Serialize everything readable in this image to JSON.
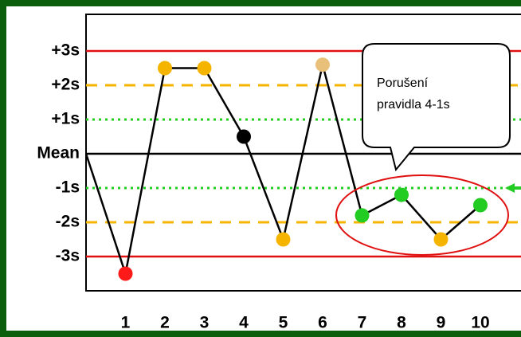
{
  "chart_data": {
    "type": "line",
    "x": [
      0,
      1,
      2,
      3,
      4,
      5,
      6,
      7,
      8,
      9,
      10
    ],
    "values": [
      0,
      -3.5,
      2.5,
      2.5,
      0.5,
      -2.5,
      2.6,
      -1.8,
      -1.2,
      -2.5,
      -1.5
    ],
    "point_colors": [
      null,
      "#ff1a1a",
      "#f5b400",
      "#f5b400",
      "#000000",
      "#f5b400",
      "#e8c07a",
      "#22cc22",
      "#22cc22",
      "#f5b400",
      "#22cc22"
    ],
    "xlim": [
      0,
      11
    ],
    "xticks": [
      1,
      2,
      3,
      4,
      5,
      6,
      7,
      8,
      9,
      10
    ],
    "ylim": [
      -4,
      4
    ],
    "yticks": [
      {
        "value": 3,
        "label": "+3s"
      },
      {
        "value": 2,
        "label": "+2s"
      },
      {
        "value": 1,
        "label": "+1s"
      },
      {
        "value": 0,
        "label": "Mean"
      },
      {
        "value": -1,
        "label": "-1s"
      },
      {
        "value": -2,
        "label": "-2s"
      },
      {
        "value": -3,
        "label": "-3s"
      }
    ],
    "annotation": [
      "Porušení",
      "pravidla 4-1s"
    ]
  }
}
